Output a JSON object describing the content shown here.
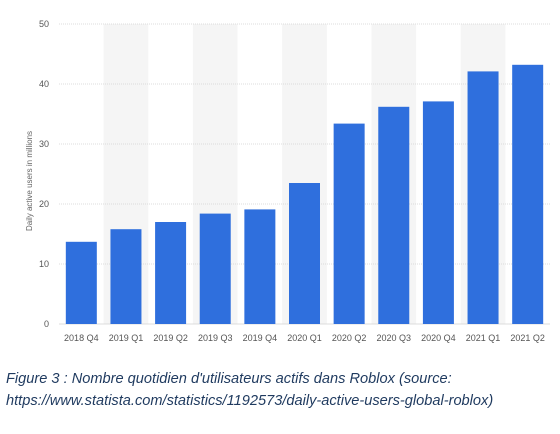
{
  "chart_data": {
    "type": "bar",
    "categories": [
      "2018 Q4",
      "2019 Q1",
      "2019 Q2",
      "2019 Q3",
      "2019 Q4",
      "2020 Q1",
      "2020 Q2",
      "2020 Q3",
      "2020 Q4",
      "2021 Q1",
      "2021 Q2"
    ],
    "values": [
      13.7,
      15.8,
      17.0,
      18.4,
      19.1,
      23.5,
      33.4,
      36.2,
      37.1,
      42.1,
      43.2
    ],
    "ylabel": "Daily active users in millions",
    "xlabel": "",
    "ylim": [
      0,
      50
    ],
    "yticks": [
      0,
      10,
      20,
      30,
      40,
      50
    ],
    "grid": true,
    "bar_color": "#2f6fdd",
    "stripe_color": "#f5f5f5"
  },
  "caption": {
    "line1": "Figure 3 : Nombre quotidien d'utilisateurs actifs dans Roblox (source:",
    "line2": "https://www.statista.com/statistics/1192573/daily-active-users-global-roblox)"
  }
}
